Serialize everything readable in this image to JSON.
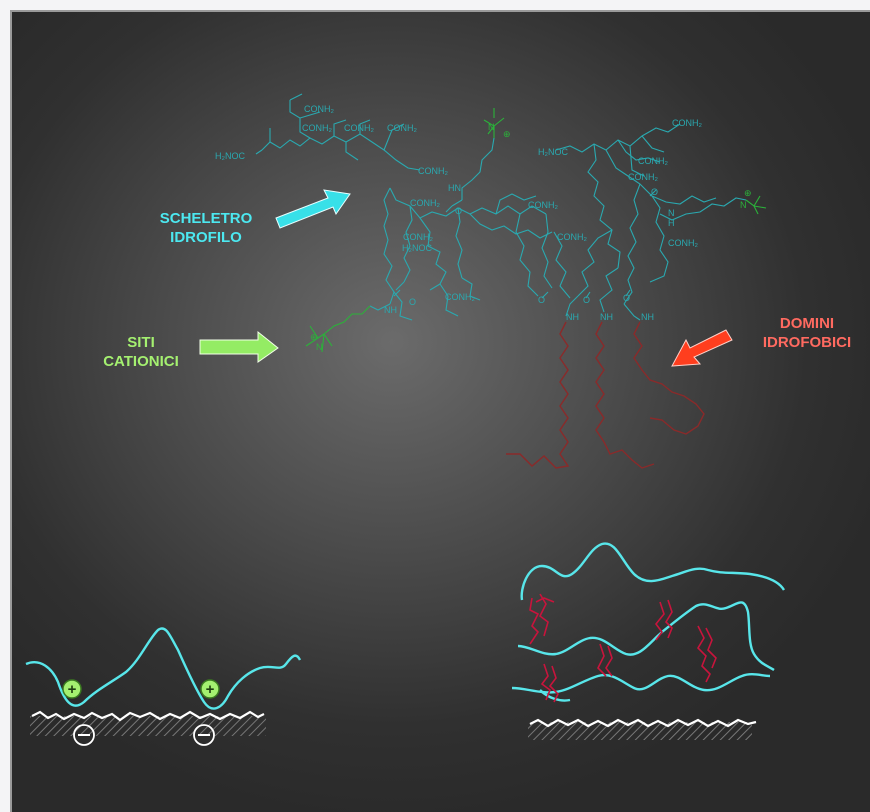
{
  "labels": {
    "scheletro_line1": "SCHELETRO",
    "scheletro_line2": "IDROFILO",
    "siti_line1": "SITI",
    "siti_line2": "CATIONICI",
    "domini_line1": "DOMINI",
    "domini_line2": "IDROFOBICI"
  },
  "chem_groups": {
    "conh2": "CONH₂",
    "h2noc": "H₂NOC",
    "nh": "NH",
    "hn": "HN",
    "n": "N",
    "h": "H",
    "o": "O",
    "charge_plus": "⊕",
    "charge_minus": "⊖",
    "plus": "+",
    "minus": "−"
  },
  "colors": {
    "background_center": "#6b6b6b",
    "background_edge": "#2a2a2a",
    "backbone": "#2aa9b0",
    "cationic_site": "#2bb23a",
    "hydrophobic_chain": "#8a2a2a",
    "label_cyan": "#4ce8f0",
    "label_green": "#a4f070",
    "label_red": "#ff6a60",
    "polymer_strand": "#58e6ea",
    "hydrophobic_strand": "#c8143c",
    "surface": "#ffffff"
  }
}
